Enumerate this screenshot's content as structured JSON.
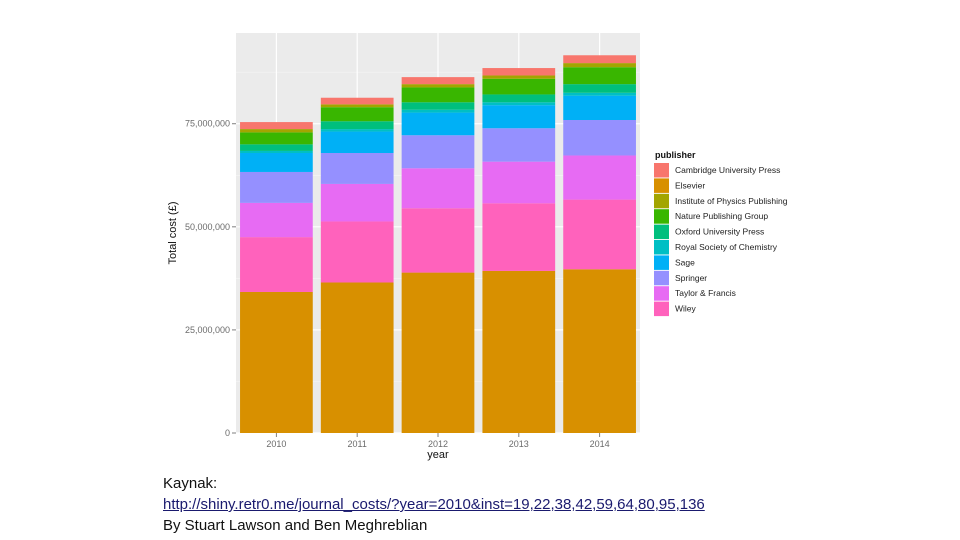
{
  "chart_data": {
    "type": "bar",
    "stacked": true,
    "title": "",
    "xlabel": "year",
    "ylabel": "Total cost (£)",
    "categories": [
      "2010",
      "2011",
      "2012",
      "2013",
      "2014"
    ],
    "ylim": [
      0,
      97000000
    ],
    "yticks": [
      0,
      25000000,
      50000000,
      75000000
    ],
    "ytick_labels": [
      "0",
      "25,000,000",
      "50,000,000",
      "75,000,000"
    ],
    "grid": true,
    "legend_title": "publisher",
    "legend_position": "right",
    "series": [
      {
        "name": "Elsevier",
        "color": "#D89000",
        "values": [
          34200000,
          36500000,
          38900000,
          39300000,
          39700000
        ]
      },
      {
        "name": "Wiley",
        "color": "#FF62BC",
        "values": [
          13300000,
          14800000,
          15600000,
          16400000,
          16900000
        ]
      },
      {
        "name": "Taylor & Francis",
        "color": "#E76BF3",
        "values": [
          8300000,
          9100000,
          9700000,
          10100000,
          10700000
        ]
      },
      {
        "name": "Springer",
        "color": "#9590FF",
        "values": [
          7500000,
          7500000,
          8000000,
          8100000,
          8600000
        ]
      },
      {
        "name": "Sage",
        "color": "#00B0F6",
        "values": [
          4600000,
          5200000,
          5500000,
          5600000,
          5900000
        ]
      },
      {
        "name": "Royal Society of Chemistry",
        "color": "#00BFC4",
        "values": [
          500000,
          600000,
          700000,
          700000,
          700000
        ]
      },
      {
        "name": "Oxford University Press",
        "color": "#00BF7D",
        "values": [
          1600000,
          1900000,
          1800000,
          1900000,
          2100000
        ]
      },
      {
        "name": "Nature Publishing Group",
        "color": "#39B600",
        "values": [
          2900000,
          3400000,
          3600000,
          3800000,
          4100000
        ]
      },
      {
        "name": "Institute of Physics Publishing",
        "color": "#A3A500",
        "values": [
          800000,
          700000,
          800000,
          800000,
          1000000
        ]
      },
      {
        "name": "Cambridge University Press",
        "color": "#F8766D",
        "values": [
          1700000,
          1600000,
          1700000,
          1800000,
          1900000
        ]
      }
    ],
    "legend_order": [
      "Cambridge University Press",
      "Elsevier",
      "Institute of Physics Publishing",
      "Nature Publishing Group",
      "Oxford University Press",
      "Royal Society of Chemistry",
      "Sage",
      "Springer",
      "Taylor & Francis",
      "Wiley"
    ]
  },
  "colors": {
    "panel": "#EBEBEB",
    "grid_major": "#FFFFFF",
    "grid_minor": "#F5F5F5"
  },
  "caption": {
    "source_label": "Kaynak:",
    "url": "http://shiny.retr0.me/journal_costs/?year=2010&inst=19,22,38,42,59,64,80,95,136",
    "credit": "By  Stuart Lawson and Ben Meghreblian"
  }
}
